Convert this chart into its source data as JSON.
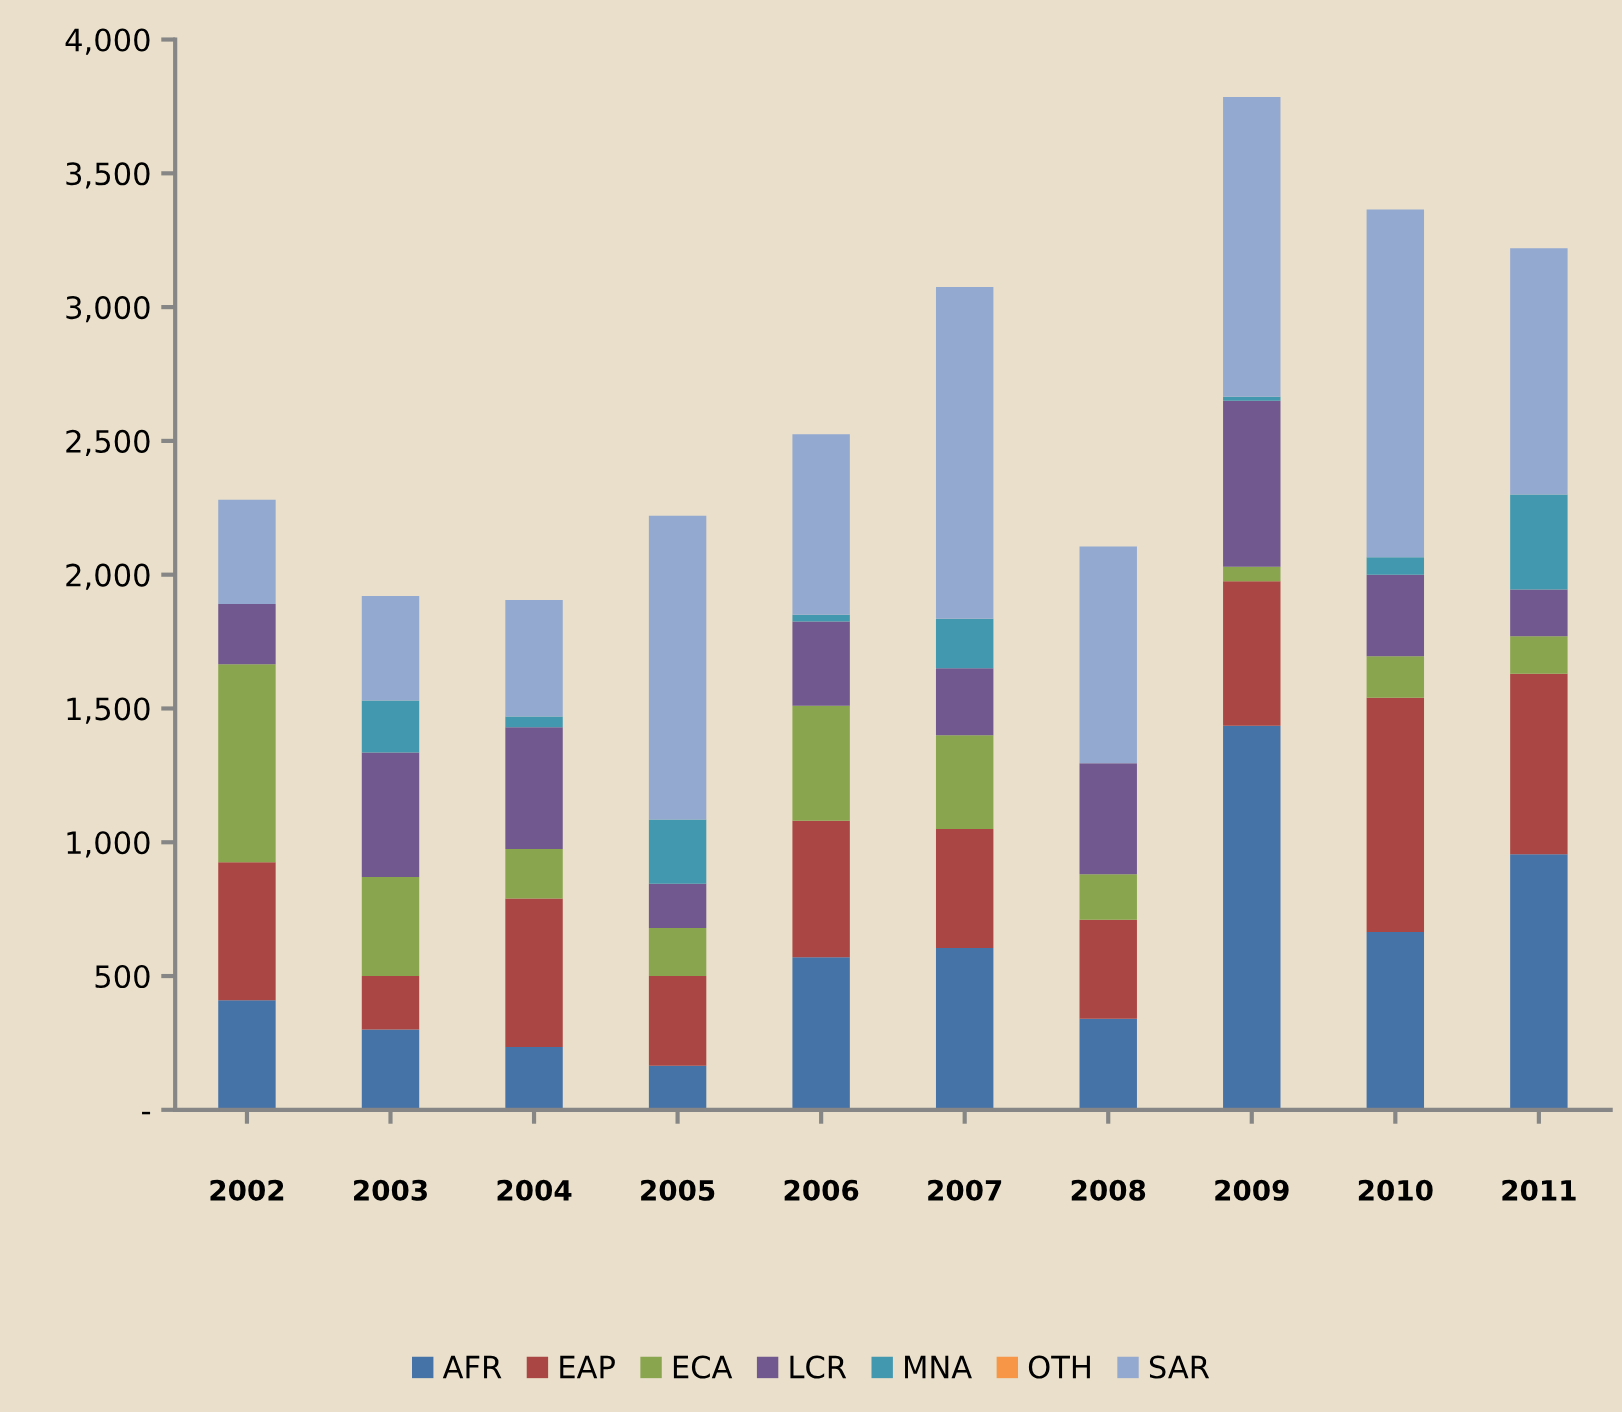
{
  "chart_data": {
    "type": "bar",
    "stacked": true,
    "categories": [
      "2002",
      "2003",
      "2004",
      "2005",
      "2006",
      "2007",
      "2008",
      "2009",
      "2010",
      "2011"
    ],
    "series": [
      {
        "name": "AFR",
        "color": "#4572a7",
        "values": [
          410,
          300,
          235,
          165,
          570,
          605,
          340,
          1435,
          665,
          955
        ]
      },
      {
        "name": "EAP",
        "color": "#aa4643",
        "values": [
          515,
          200,
          555,
          335,
          510,
          445,
          370,
          540,
          875,
          675
        ]
      },
      {
        "name": "ECA",
        "color": "#89a54e",
        "values": [
          740,
          370,
          185,
          180,
          430,
          350,
          170,
          55,
          155,
          140
        ]
      },
      {
        "name": "LCR",
        "color": "#71588f",
        "values": [
          225,
          465,
          455,
          165,
          315,
          250,
          415,
          620,
          305,
          175
        ]
      },
      {
        "name": "MNA",
        "color": "#4198af",
        "values": [
          0,
          195,
          40,
          240,
          25,
          185,
          0,
          15,
          65,
          355
        ]
      },
      {
        "name": "OTH",
        "color": "#f79646",
        "values": [
          0,
          0,
          0,
          0,
          0,
          0,
          0,
          0,
          0,
          0
        ]
      },
      {
        "name": "SAR",
        "color": "#93a9d0",
        "values": [
          390,
          390,
          435,
          1135,
          675,
          1240,
          810,
          1120,
          1300,
          920
        ]
      }
    ],
    "ylim": [
      0,
      4000
    ],
    "yticks": [
      {
        "value": 0,
        "label": "-"
      },
      {
        "value": 500,
        "label": "500"
      },
      {
        "value": 1000,
        "label": "1,000"
      },
      {
        "value": 1500,
        "label": "1,500"
      },
      {
        "value": 2000,
        "label": "2,000"
      },
      {
        "value": 2500,
        "label": "2,500"
      },
      {
        "value": 3000,
        "label": "3,000"
      },
      {
        "value": 3500,
        "label": "3,500"
      },
      {
        "value": 4000,
        "label": "4,000"
      }
    ],
    "grid": false,
    "legend": "bottom"
  }
}
